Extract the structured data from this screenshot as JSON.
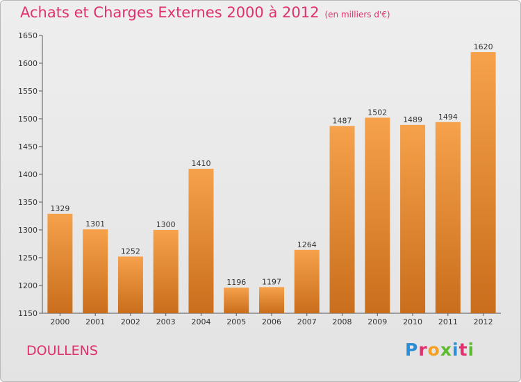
{
  "title": "Achats et Charges Externes 2000 à 2012",
  "subtitle": "(en milliers d'€)",
  "city": "DOULLENS",
  "brand": "Proxiti",
  "colors": {
    "title": "#e0306e",
    "bar_light": "#f6a14b",
    "bar_dark": "#c96e1c",
    "logo_letters": [
      "#2a8fd8",
      "#e0306e",
      "#f5a020",
      "#5dbb2f",
      "#2a8fd8",
      "#e0306e",
      "#5dbb2f"
    ]
  },
  "chart_data": {
    "type": "bar",
    "title": "Achats et Charges Externes 2000 à 2012",
    "subtitle": "(en milliers d'€)",
    "categories": [
      "2000",
      "2001",
      "2002",
      "2003",
      "2004",
      "2005",
      "2006",
      "2007",
      "2008",
      "2009",
      "2010",
      "2011",
      "2012"
    ],
    "values": [
      1329,
      1301,
      1252,
      1300,
      1410,
      1196,
      1197,
      1264,
      1487,
      1502,
      1489,
      1494,
      1620
    ],
    "ylim": [
      1150,
      1650
    ],
    "yticks": [
      1150,
      1200,
      1250,
      1300,
      1350,
      1400,
      1450,
      1500,
      1550,
      1600,
      1650
    ],
    "grid": false,
    "legend": "none"
  }
}
